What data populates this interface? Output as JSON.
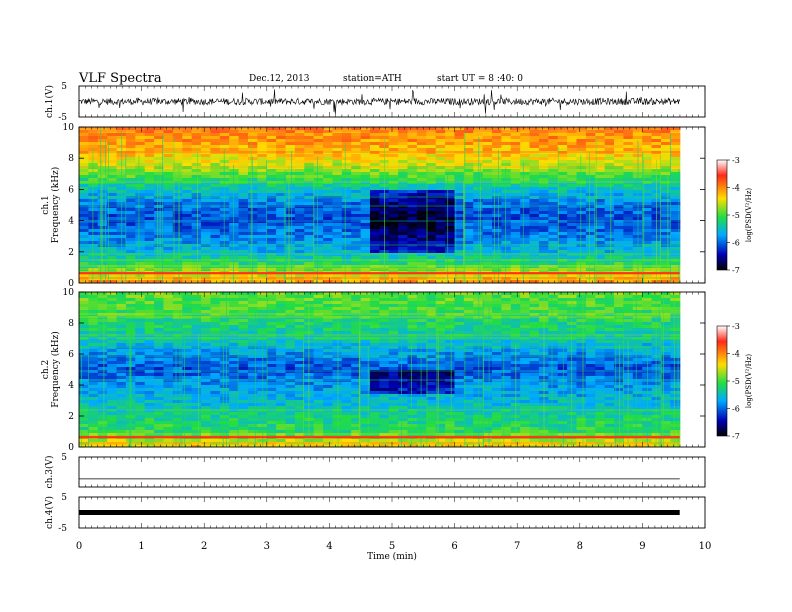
{
  "header": {
    "title": "VLF  Spectra",
    "date": "Dec.12, 2013",
    "station": "station=ATH",
    "start": "start  UT =   8 :40: 0"
  },
  "chart_data": [
    {
      "type": "line",
      "panel": "ch1-waveform",
      "ylabel": "ch.1(V)",
      "ylim": [
        -5,
        5
      ],
      "yticks": [
        "5",
        "-5"
      ],
      "xlim": [
        0,
        10
      ],
      "series_color": "#000000",
      "baseline_level_V": 0,
      "data_end_min": 9.8
    },
    {
      "type": "heatmap",
      "panel": "ch1-spectrogram",
      "ylabel": [
        "ch.1",
        "Frequency  (kHz)"
      ],
      "ylim": [
        0,
        10
      ],
      "yticks": [
        "0",
        "2",
        "4",
        "6",
        "8",
        "10"
      ],
      "xlim": [
        0,
        10
      ],
      "data_end_min": 9.8,
      "colorbar": {
        "label": "log(PSD(V²/Hz)",
        "range": [
          -7,
          -3
        ],
        "ticks": [
          "-3",
          "-4",
          "-5",
          "-6",
          "-7"
        ],
        "stops": [
          "#ffffff",
          "#ff2a1a",
          "#ffdd00",
          "#22dd44",
          "#00aaff",
          "#0000b4",
          "#000000"
        ]
      },
      "frequency_profile_logpsd": [
        {
          "f_khz": 0.0,
          "logpsd": -4.0
        },
        {
          "f_khz": 1.0,
          "logpsd": -5.0
        },
        {
          "f_khz": 2.0,
          "logpsd": -5.6
        },
        {
          "f_khz": 3.0,
          "logpsd": -5.9
        },
        {
          "f_khz": 4.0,
          "logpsd": -6.1
        },
        {
          "f_khz": 5.0,
          "logpsd": -6.0
        },
        {
          "f_khz": 6.0,
          "logpsd": -5.5
        },
        {
          "f_khz": 7.0,
          "logpsd": -4.9
        },
        {
          "f_khz": 8.0,
          "logpsd": -4.4
        },
        {
          "f_khz": 9.0,
          "logpsd": -4.1
        },
        {
          "f_khz": 10.0,
          "logpsd": -4.0
        }
      ],
      "quiet_region": {
        "t_min": [
          4.8,
          6.1
        ],
        "f_khz": [
          2.0,
          6.0
        ],
        "delta_logpsd": -0.7
      }
    },
    {
      "type": "heatmap",
      "panel": "ch2-spectrogram",
      "ylabel": [
        "ch.2",
        "Frequency  (kHz)"
      ],
      "ylim": [
        0,
        10
      ],
      "yticks": [
        "0",
        "2",
        "4",
        "6",
        "8",
        "10"
      ],
      "xlim": [
        0,
        10
      ],
      "data_end_min": 9.8,
      "colorbar": {
        "label": "log(PSD(V²/Hz)",
        "range": [
          -7,
          -3
        ],
        "ticks": [
          "-3",
          "-4",
          "-5",
          "-6",
          "-7"
        ],
        "stops": [
          "#ffffff",
          "#ff2a1a",
          "#ffdd00",
          "#22dd44",
          "#00aaff",
          "#0000b4",
          "#000000"
        ]
      },
      "frequency_profile_logpsd": [
        {
          "f_khz": 0.0,
          "logpsd": -4.3
        },
        {
          "f_khz": 1.0,
          "logpsd": -5.1
        },
        {
          "f_khz": 2.0,
          "logpsd": -5.3
        },
        {
          "f_khz": 3.0,
          "logpsd": -5.6
        },
        {
          "f_khz": 4.0,
          "logpsd": -5.8
        },
        {
          "f_khz": 5.0,
          "logpsd": -6.1
        },
        {
          "f_khz": 6.0,
          "logpsd": -5.8
        },
        {
          "f_khz": 7.0,
          "logpsd": -5.4
        },
        {
          "f_khz": 8.0,
          "logpsd": -5.2
        },
        {
          "f_khz": 9.0,
          "logpsd": -5.0
        },
        {
          "f_khz": 10.0,
          "logpsd": -4.9
        }
      ],
      "quiet_region": {
        "t_min": [
          4.8,
          6.1
        ],
        "f_khz": [
          3.5,
          5.0
        ],
        "delta_logpsd": -0.6
      }
    },
    {
      "type": "line",
      "panel": "ch3-waveform",
      "ylabel": "ch.3(V)",
      "ylim": [
        -5,
        5
      ],
      "yticks": [
        "5"
      ],
      "xlim": [
        0,
        10
      ],
      "series_color": "#000000",
      "baseline_level_V": -2.3,
      "data_end_min": 9.8
    },
    {
      "type": "line",
      "panel": "ch4-waveform",
      "ylabel": "ch.4(V)",
      "ylim": [
        -5,
        5
      ],
      "yticks": [
        "5",
        "-5"
      ],
      "xlim": [
        0,
        10
      ],
      "series_color": "#000000",
      "baseline_level_V": 0,
      "data_end_min": 9.8
    }
  ],
  "x_axis": {
    "label": "Time  (min)",
    "ticks": [
      "0",
      "1",
      "2",
      "3",
      "4",
      "5",
      "6",
      "7",
      "8",
      "9",
      "10"
    ]
  }
}
